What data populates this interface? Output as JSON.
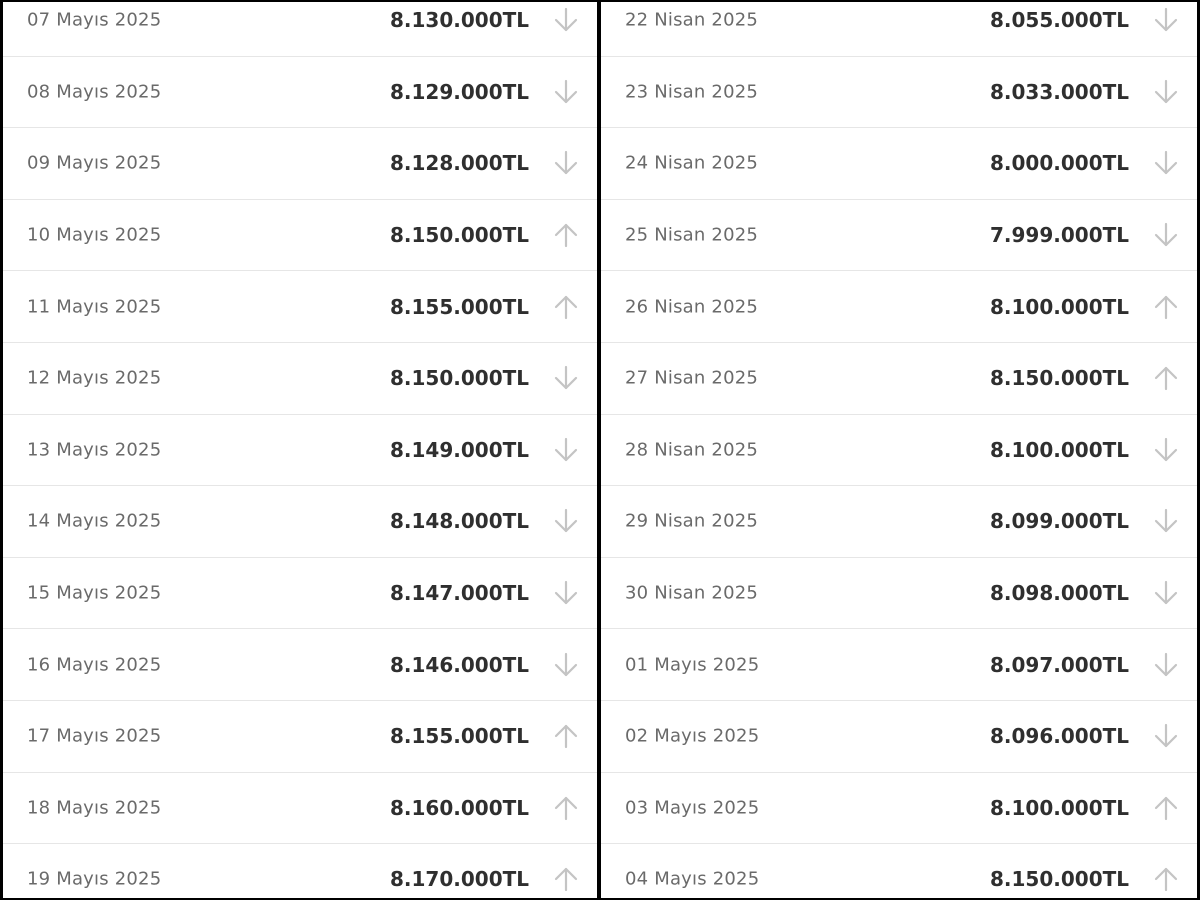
{
  "left_column": [
    {
      "date": "07 Mayıs 2025",
      "price": "8.130.000TL",
      "trend": "down"
    },
    {
      "date": "08 Mayıs 2025",
      "price": "8.129.000TL",
      "trend": "down"
    },
    {
      "date": "09 Mayıs 2025",
      "price": "8.128.000TL",
      "trend": "down"
    },
    {
      "date": "10 Mayıs 2025",
      "price": "8.150.000TL",
      "trend": "up"
    },
    {
      "date": "11 Mayıs 2025",
      "price": "8.155.000TL",
      "trend": "up"
    },
    {
      "date": "12 Mayıs 2025",
      "price": "8.150.000TL",
      "trend": "down"
    },
    {
      "date": "13 Mayıs 2025",
      "price": "8.149.000TL",
      "trend": "down"
    },
    {
      "date": "14 Mayıs 2025",
      "price": "8.148.000TL",
      "trend": "down"
    },
    {
      "date": "15 Mayıs 2025",
      "price": "8.147.000TL",
      "trend": "down"
    },
    {
      "date": "16 Mayıs 2025",
      "price": "8.146.000TL",
      "trend": "down"
    },
    {
      "date": "17 Mayıs 2025",
      "price": "8.155.000TL",
      "trend": "up"
    },
    {
      "date": "18 Mayıs 2025",
      "price": "8.160.000TL",
      "trend": "up"
    },
    {
      "date": "19 Mayıs 2025",
      "price": "8.170.000TL",
      "trend": "up"
    }
  ],
  "right_column": [
    {
      "date": "22 Nisan 2025",
      "price": "8.055.000TL",
      "trend": "down"
    },
    {
      "date": "23 Nisan 2025",
      "price": "8.033.000TL",
      "trend": "down"
    },
    {
      "date": "24 Nisan 2025",
      "price": "8.000.000TL",
      "trend": "down"
    },
    {
      "date": "25 Nisan 2025",
      "price": "7.999.000TL",
      "trend": "down"
    },
    {
      "date": "26 Nisan 2025",
      "price": "8.100.000TL",
      "trend": "up"
    },
    {
      "date": "27 Nisan 2025",
      "price": "8.150.000TL",
      "trend": "up"
    },
    {
      "date": "28 Nisan 2025",
      "price": "8.100.000TL",
      "trend": "down"
    },
    {
      "date": "29 Nisan 2025",
      "price": "8.099.000TL",
      "trend": "down"
    },
    {
      "date": "30 Nisan 2025",
      "price": "8.098.000TL",
      "trend": "down"
    },
    {
      "date": "01 Mayıs 2025",
      "price": "8.097.000TL",
      "trend": "down"
    },
    {
      "date": "02 Mayıs 2025",
      "price": "8.096.000TL",
      "trend": "down"
    },
    {
      "date": "03 Mayıs 2025",
      "price": "8.100.000TL",
      "trend": "up"
    },
    {
      "date": "04 Mayıs 2025",
      "price": "8.150.000TL",
      "trend": "up"
    }
  ],
  "colors": {
    "date_text": "#6a6a6a",
    "price_text": "#2f2f2f",
    "arrow": "#c4c4c4",
    "divider": "#e6e6e6",
    "frame": "#000000"
  },
  "icons": {
    "up": "arrow-up-icon",
    "down": "arrow-down-icon"
  }
}
